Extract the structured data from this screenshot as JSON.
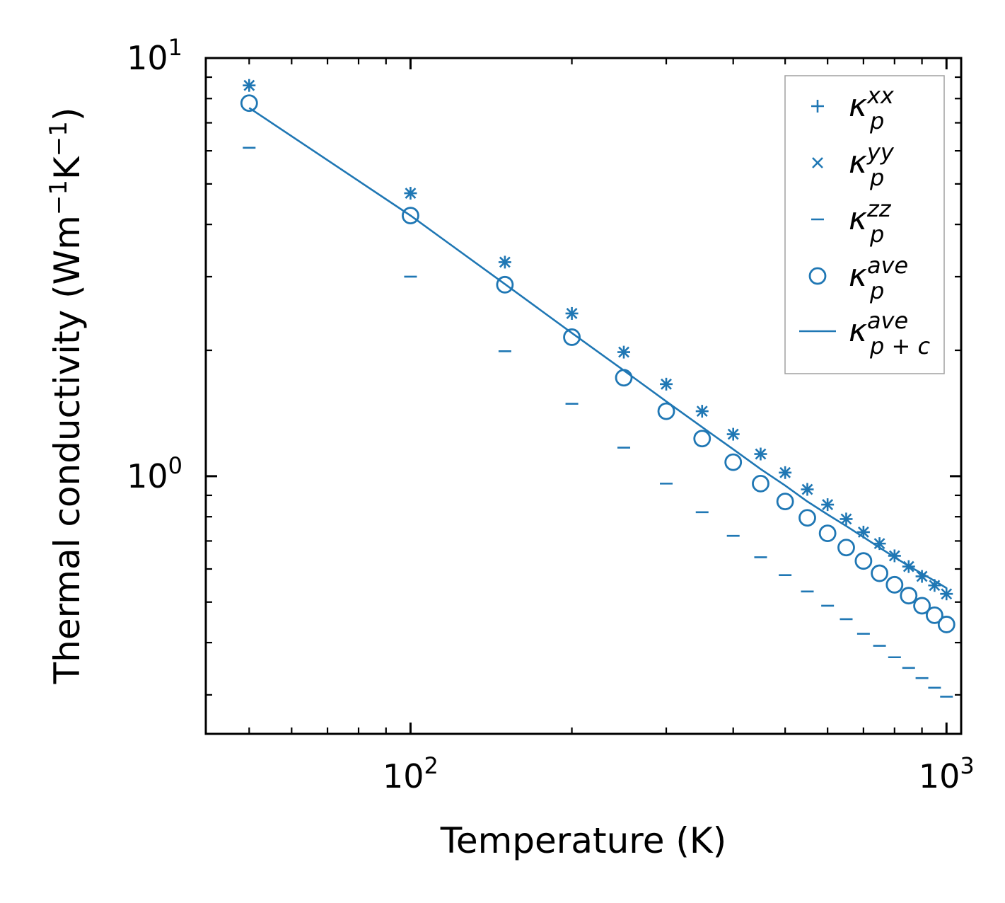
{
  "chart_data": {
    "type": "scatter",
    "scale": {
      "x": "log",
      "y": "log"
    },
    "xlabel": "Temperature (K)",
    "ylabel": {
      "text": "Thermal conductivity (Wm",
      "exp1": "−1",
      "mid": "K",
      "exp2": "−1",
      "close": ")"
    },
    "xlim": [
      41.5,
      1065
    ],
    "ylim": [
      0.242,
      10.0
    ],
    "xticks": [
      {
        "value": 100,
        "base": "10",
        "exp": "2"
      },
      {
        "value": 1000,
        "base": "10",
        "exp": "3"
      }
    ],
    "yticks": [
      {
        "value": 1,
        "base": "10",
        "exp": "0"
      },
      {
        "value": 10,
        "base": "10",
        "exp": "1"
      }
    ],
    "x": [
      50,
      100,
      150,
      200,
      250,
      300,
      350,
      400,
      450,
      500,
      550,
      600,
      650,
      700,
      750,
      800,
      850,
      900,
      950,
      1000
    ],
    "series": [
      {
        "name": "kappa_p^xx",
        "marker": "plus",
        "values": [
          8.6,
          4.75,
          3.25,
          2.45,
          1.98,
          1.66,
          1.43,
          1.26,
          1.13,
          1.02,
          0.93,
          0.855,
          0.79,
          0.735,
          0.69,
          0.645,
          0.608,
          0.576,
          0.548,
          0.523
        ]
      },
      {
        "name": "kappa_p^yy",
        "marker": "x",
        "values": [
          8.6,
          4.75,
          3.25,
          2.45,
          1.98,
          1.66,
          1.43,
          1.26,
          1.13,
          1.02,
          0.93,
          0.855,
          0.79,
          0.735,
          0.69,
          0.645,
          0.608,
          0.576,
          0.548,
          0.523
        ]
      },
      {
        "name": "kappa_p^zz",
        "marker": "hline",
        "values": [
          6.1,
          3.0,
          1.99,
          1.49,
          1.17,
          0.96,
          0.82,
          0.72,
          0.64,
          0.58,
          0.53,
          0.49,
          0.455,
          0.42,
          0.393,
          0.369,
          0.348,
          0.329,
          0.312,
          0.297
        ]
      },
      {
        "name": "kappa_p^ave",
        "marker": "circle",
        "values": [
          7.8,
          4.2,
          2.87,
          2.15,
          1.72,
          1.43,
          1.23,
          1.08,
          0.96,
          0.87,
          0.795,
          0.73,
          0.675,
          0.627,
          0.586,
          0.55,
          0.518,
          0.49,
          0.465,
          0.442
        ]
      },
      {
        "name": "kappa_p+c^ave",
        "marker": "line",
        "values": [
          7.6,
          4.2,
          2.88,
          2.2,
          1.79,
          1.51,
          1.31,
          1.16,
          1.04,
          0.95,
          0.87,
          0.81,
          0.76,
          0.715,
          0.675,
          0.64,
          0.61,
          0.585,
          0.562,
          0.54
        ]
      }
    ],
    "color": "#1f77b4",
    "legend": {
      "position": "top-right",
      "entries": [
        {
          "marker": "plus",
          "symbol": "κ",
          "sub": "p",
          "sup": "xx"
        },
        {
          "marker": "x",
          "symbol": "κ",
          "sub": "p",
          "sup": "yy"
        },
        {
          "marker": "hline",
          "symbol": "κ",
          "sub": "p",
          "sup": "zz"
        },
        {
          "marker": "circle",
          "symbol": "κ",
          "sub": "p",
          "sup": "ave"
        },
        {
          "marker": "line",
          "symbol": "κ",
          "sub": "p + c",
          "sup": "ave"
        }
      ]
    }
  }
}
